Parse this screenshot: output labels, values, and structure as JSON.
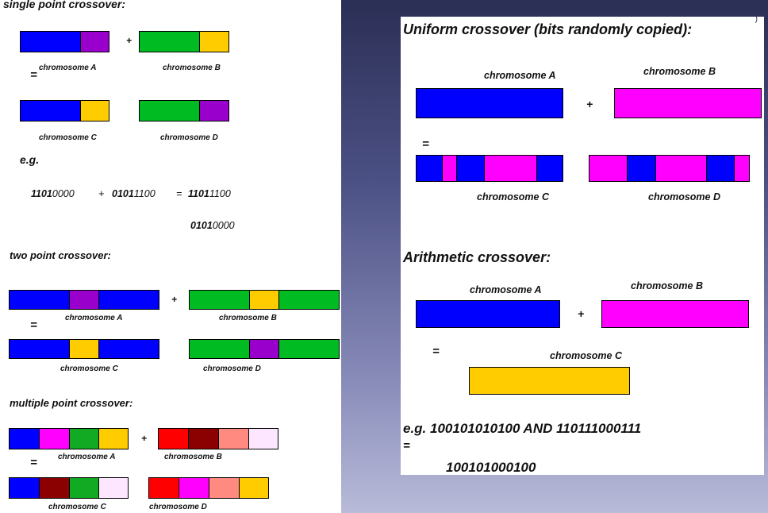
{
  "single": {
    "title": "single point crossover:",
    "plus": "+",
    "eq": "=",
    "label_a": "chromosome A",
    "label_b": "chromosome B",
    "label_c": "chromosome C",
    "label_d": "chromosome D",
    "eg": "e.g.",
    "bin_a_bold": "1101",
    "bin_a_rest": "0000",
    "plus_bin": "+",
    "bin_b_bold": "0101",
    "bin_b_rest": "1100",
    "eq_bin": "=",
    "bin_c_bold": "1101",
    "bin_c_rest": "1100",
    "bin_d_bold": "0101",
    "bin_d_rest": "0000"
  },
  "two": {
    "title": "two point crossover:",
    "plus": "+",
    "eq": "=",
    "label_a": "chromosome A",
    "label_b": "chromosome B",
    "label_c": "chromosome C",
    "label_d": "chromosome D"
  },
  "multiple": {
    "title": "multiple point crossover:",
    "plus": "+",
    "eq": "=",
    "label_a": "chromosome A",
    "label_b": "chromosome B",
    "label_c": "chromosome C",
    "label_d": "chromosome D"
  },
  "uniform": {
    "title": "Uniform crossover (bits randomly copied):",
    "label_a": "chromosome A",
    "label_b": "chromosome B",
    "plus": "+",
    "eq": "=",
    "label_c": "chromosome C",
    "label_d": "chromosome D"
  },
  "arith": {
    "title": "Arithmetic crossover:",
    "label_a": "chromosome A",
    "label_b": "chromosome B",
    "plus": "+",
    "eq": "=",
    "label_c": "chromosome C",
    "example": "e.g. 100101010100 AND 110111000111",
    "eq2": "=",
    "result": "100101000100"
  },
  "corner_mark": ")",
  "colors": {
    "blue": "#0000ff",
    "purple": "#9900cc",
    "green": "#00bb22",
    "yellow": "#ffcc00",
    "magenta": "#ff00ff",
    "red": "#ff0000",
    "maroon": "#8b0000",
    "salmon": "#ff8a80",
    "pale": "#fde6ff"
  }
}
